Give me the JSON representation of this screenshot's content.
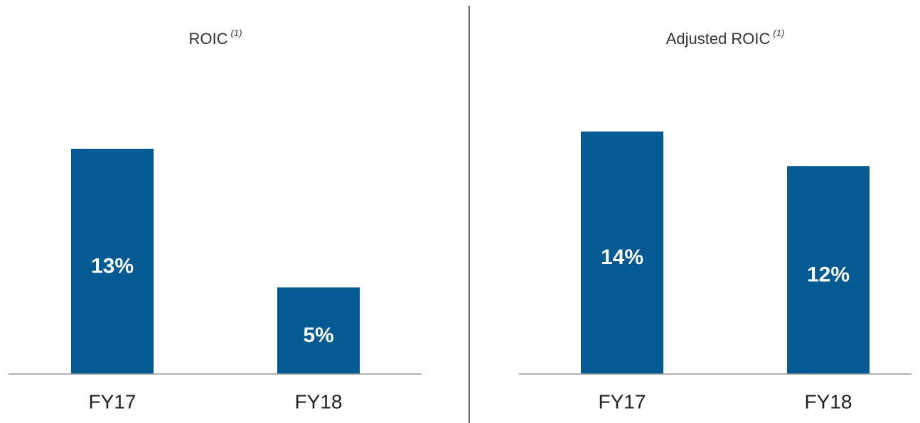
{
  "chart_data": [
    {
      "type": "bar",
      "title": "ROIC",
      "title_note": "(1)",
      "categories": [
        "FY17",
        "FY18"
      ],
      "values": [
        13,
        5
      ],
      "value_labels": [
        "13%",
        "5%"
      ],
      "color": "#045a93"
    },
    {
      "type": "bar",
      "title": "Adjusted ROIC",
      "title_note": "(1)",
      "categories": [
        "FY17",
        "FY18"
      ],
      "values": [
        14,
        12
      ],
      "value_labels": [
        "14%",
        "12%"
      ],
      "color": "#045a93"
    }
  ]
}
